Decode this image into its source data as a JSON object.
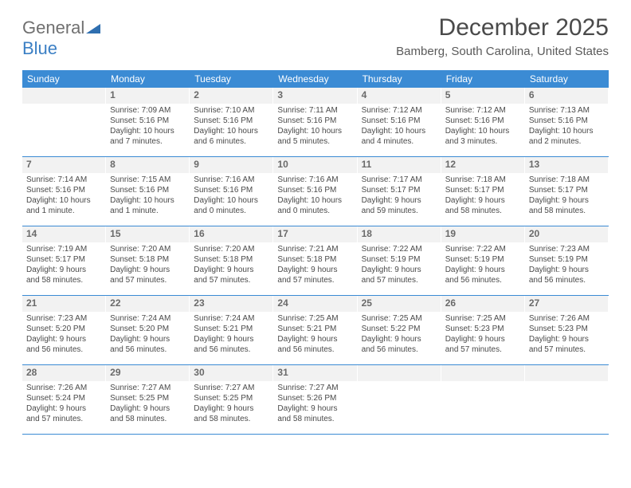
{
  "logo": {
    "text1": "General",
    "text2": "Blue"
  },
  "header": {
    "month": "December 2025",
    "location": "Bamberg, South Carolina, United States"
  },
  "dayHeaders": [
    "Sunday",
    "Monday",
    "Tuesday",
    "Wednesday",
    "Thursday",
    "Friday",
    "Saturday"
  ],
  "style": {
    "headerBg": "#3b8bd4",
    "headerText": "#ffffff",
    "ruleColor": "#3b8bd4",
    "dayNumBg": "#f2f2f2",
    "textColor": "#4a4a4a"
  },
  "weeks": [
    [
      {
        "num": "",
        "sunrise": "",
        "sunset": "",
        "daylight": ""
      },
      {
        "num": "1",
        "sunrise": "Sunrise: 7:09 AM",
        "sunset": "Sunset: 5:16 PM",
        "daylight": "Daylight: 10 hours and 7 minutes."
      },
      {
        "num": "2",
        "sunrise": "Sunrise: 7:10 AM",
        "sunset": "Sunset: 5:16 PM",
        "daylight": "Daylight: 10 hours and 6 minutes."
      },
      {
        "num": "3",
        "sunrise": "Sunrise: 7:11 AM",
        "sunset": "Sunset: 5:16 PM",
        "daylight": "Daylight: 10 hours and 5 minutes."
      },
      {
        "num": "4",
        "sunrise": "Sunrise: 7:12 AM",
        "sunset": "Sunset: 5:16 PM",
        "daylight": "Daylight: 10 hours and 4 minutes."
      },
      {
        "num": "5",
        "sunrise": "Sunrise: 7:12 AM",
        "sunset": "Sunset: 5:16 PM",
        "daylight": "Daylight: 10 hours and 3 minutes."
      },
      {
        "num": "6",
        "sunrise": "Sunrise: 7:13 AM",
        "sunset": "Sunset: 5:16 PM",
        "daylight": "Daylight: 10 hours and 2 minutes."
      }
    ],
    [
      {
        "num": "7",
        "sunrise": "Sunrise: 7:14 AM",
        "sunset": "Sunset: 5:16 PM",
        "daylight": "Daylight: 10 hours and 1 minute."
      },
      {
        "num": "8",
        "sunrise": "Sunrise: 7:15 AM",
        "sunset": "Sunset: 5:16 PM",
        "daylight": "Daylight: 10 hours and 1 minute."
      },
      {
        "num": "9",
        "sunrise": "Sunrise: 7:16 AM",
        "sunset": "Sunset: 5:16 PM",
        "daylight": "Daylight: 10 hours and 0 minutes."
      },
      {
        "num": "10",
        "sunrise": "Sunrise: 7:16 AM",
        "sunset": "Sunset: 5:16 PM",
        "daylight": "Daylight: 10 hours and 0 minutes."
      },
      {
        "num": "11",
        "sunrise": "Sunrise: 7:17 AM",
        "sunset": "Sunset: 5:17 PM",
        "daylight": "Daylight: 9 hours and 59 minutes."
      },
      {
        "num": "12",
        "sunrise": "Sunrise: 7:18 AM",
        "sunset": "Sunset: 5:17 PM",
        "daylight": "Daylight: 9 hours and 58 minutes."
      },
      {
        "num": "13",
        "sunrise": "Sunrise: 7:18 AM",
        "sunset": "Sunset: 5:17 PM",
        "daylight": "Daylight: 9 hours and 58 minutes."
      }
    ],
    [
      {
        "num": "14",
        "sunrise": "Sunrise: 7:19 AM",
        "sunset": "Sunset: 5:17 PM",
        "daylight": "Daylight: 9 hours and 58 minutes."
      },
      {
        "num": "15",
        "sunrise": "Sunrise: 7:20 AM",
        "sunset": "Sunset: 5:18 PM",
        "daylight": "Daylight: 9 hours and 57 minutes."
      },
      {
        "num": "16",
        "sunrise": "Sunrise: 7:20 AM",
        "sunset": "Sunset: 5:18 PM",
        "daylight": "Daylight: 9 hours and 57 minutes."
      },
      {
        "num": "17",
        "sunrise": "Sunrise: 7:21 AM",
        "sunset": "Sunset: 5:18 PM",
        "daylight": "Daylight: 9 hours and 57 minutes."
      },
      {
        "num": "18",
        "sunrise": "Sunrise: 7:22 AM",
        "sunset": "Sunset: 5:19 PM",
        "daylight": "Daylight: 9 hours and 57 minutes."
      },
      {
        "num": "19",
        "sunrise": "Sunrise: 7:22 AM",
        "sunset": "Sunset: 5:19 PM",
        "daylight": "Daylight: 9 hours and 56 minutes."
      },
      {
        "num": "20",
        "sunrise": "Sunrise: 7:23 AM",
        "sunset": "Sunset: 5:19 PM",
        "daylight": "Daylight: 9 hours and 56 minutes."
      }
    ],
    [
      {
        "num": "21",
        "sunrise": "Sunrise: 7:23 AM",
        "sunset": "Sunset: 5:20 PM",
        "daylight": "Daylight: 9 hours and 56 minutes."
      },
      {
        "num": "22",
        "sunrise": "Sunrise: 7:24 AM",
        "sunset": "Sunset: 5:20 PM",
        "daylight": "Daylight: 9 hours and 56 minutes."
      },
      {
        "num": "23",
        "sunrise": "Sunrise: 7:24 AM",
        "sunset": "Sunset: 5:21 PM",
        "daylight": "Daylight: 9 hours and 56 minutes."
      },
      {
        "num": "24",
        "sunrise": "Sunrise: 7:25 AM",
        "sunset": "Sunset: 5:21 PM",
        "daylight": "Daylight: 9 hours and 56 minutes."
      },
      {
        "num": "25",
        "sunrise": "Sunrise: 7:25 AM",
        "sunset": "Sunset: 5:22 PM",
        "daylight": "Daylight: 9 hours and 56 minutes."
      },
      {
        "num": "26",
        "sunrise": "Sunrise: 7:25 AM",
        "sunset": "Sunset: 5:23 PM",
        "daylight": "Daylight: 9 hours and 57 minutes."
      },
      {
        "num": "27",
        "sunrise": "Sunrise: 7:26 AM",
        "sunset": "Sunset: 5:23 PM",
        "daylight": "Daylight: 9 hours and 57 minutes."
      }
    ],
    [
      {
        "num": "28",
        "sunrise": "Sunrise: 7:26 AM",
        "sunset": "Sunset: 5:24 PM",
        "daylight": "Daylight: 9 hours and 57 minutes."
      },
      {
        "num": "29",
        "sunrise": "Sunrise: 7:27 AM",
        "sunset": "Sunset: 5:25 PM",
        "daylight": "Daylight: 9 hours and 58 minutes."
      },
      {
        "num": "30",
        "sunrise": "Sunrise: 7:27 AM",
        "sunset": "Sunset: 5:25 PM",
        "daylight": "Daylight: 9 hours and 58 minutes."
      },
      {
        "num": "31",
        "sunrise": "Sunrise: 7:27 AM",
        "sunset": "Sunset: 5:26 PM",
        "daylight": "Daylight: 9 hours and 58 minutes."
      },
      {
        "num": "",
        "sunrise": "",
        "sunset": "",
        "daylight": ""
      },
      {
        "num": "",
        "sunrise": "",
        "sunset": "",
        "daylight": ""
      },
      {
        "num": "",
        "sunrise": "",
        "sunset": "",
        "daylight": ""
      }
    ]
  ]
}
